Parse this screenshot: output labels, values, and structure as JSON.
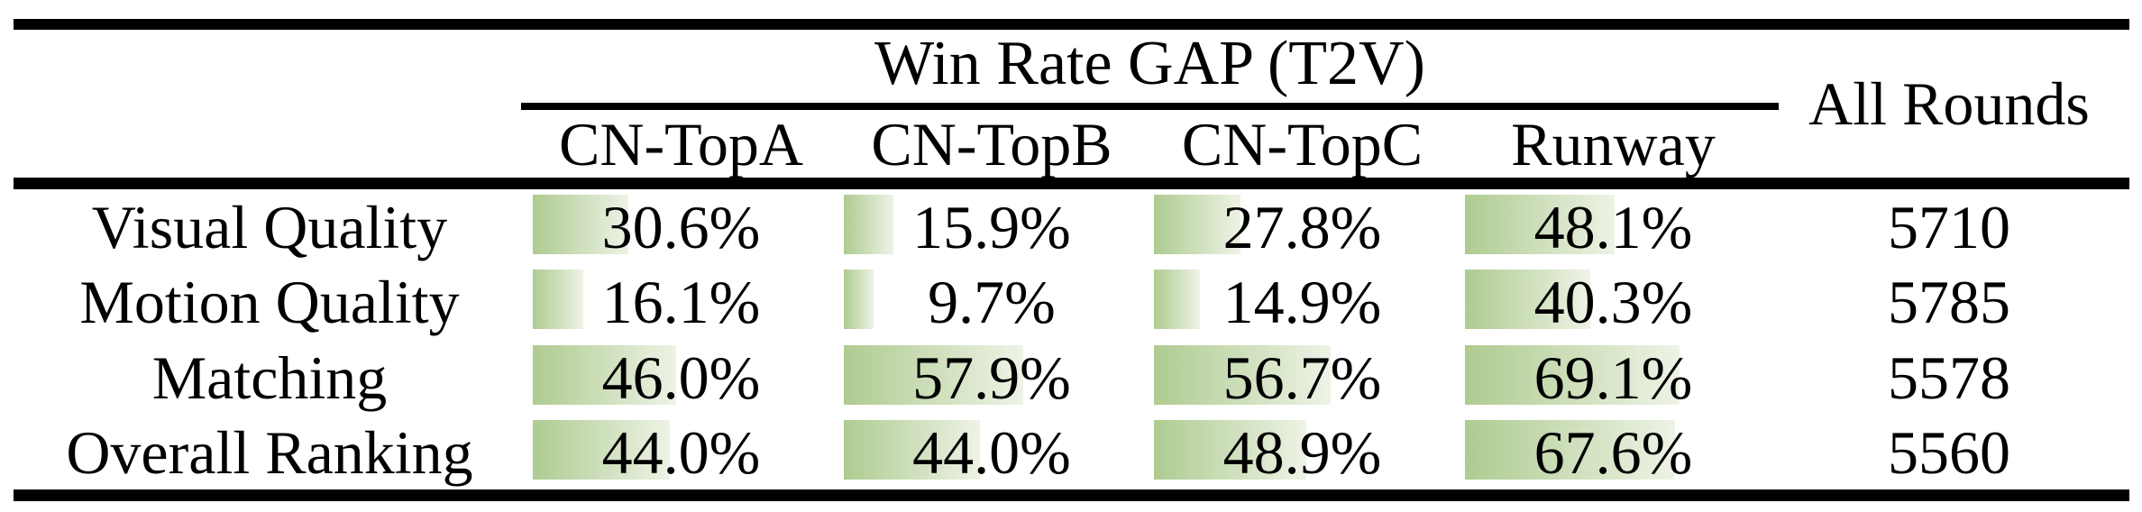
{
  "table": {
    "group_header": "Win Rate GAP (T2V)",
    "all_rounds_header": "All Rounds",
    "columns": [
      "CN-TopA",
      "CN-TopB",
      "CN-TopC",
      "Runway"
    ],
    "rows": [
      {
        "label": "Visual Quality",
        "values": [
          {
            "pct": 30.6,
            "label": "30.6%"
          },
          {
            "pct": 15.9,
            "label": "15.9%"
          },
          {
            "pct": 27.8,
            "label": "27.8%"
          },
          {
            "pct": 48.1,
            "label": "48.1%"
          }
        ],
        "all_rounds": "5710"
      },
      {
        "label": "Motion Quality",
        "values": [
          {
            "pct": 16.1,
            "label": "16.1%"
          },
          {
            "pct": 9.7,
            "label": "9.7%"
          },
          {
            "pct": 14.9,
            "label": "14.9%"
          },
          {
            "pct": 40.3,
            "label": "40.3%"
          }
        ],
        "all_rounds": "5785"
      },
      {
        "label": "Matching",
        "values": [
          {
            "pct": 46.0,
            "label": "46.0%"
          },
          {
            "pct": 57.9,
            "label": "57.9%"
          },
          {
            "pct": 56.7,
            "label": "56.7%"
          },
          {
            "pct": 69.1,
            "label": "69.1%"
          }
        ],
        "all_rounds": "5578"
      },
      {
        "label": "Overall Ranking",
        "values": [
          {
            "pct": 44.0,
            "label": "44.0%"
          },
          {
            "pct": 44.0,
            "label": "44.0%"
          },
          {
            "pct": 48.9,
            "label": "48.9%"
          },
          {
            "pct": 67.6,
            "label": "67.6%"
          }
        ],
        "all_rounds": "5560"
      }
    ]
  },
  "colors": {
    "rule": "#000000",
    "bar_gradient_start": "#aecb90",
    "bar_gradient_end": "#eef3e6",
    "text": "#000000",
    "background": "#ffffff"
  }
}
